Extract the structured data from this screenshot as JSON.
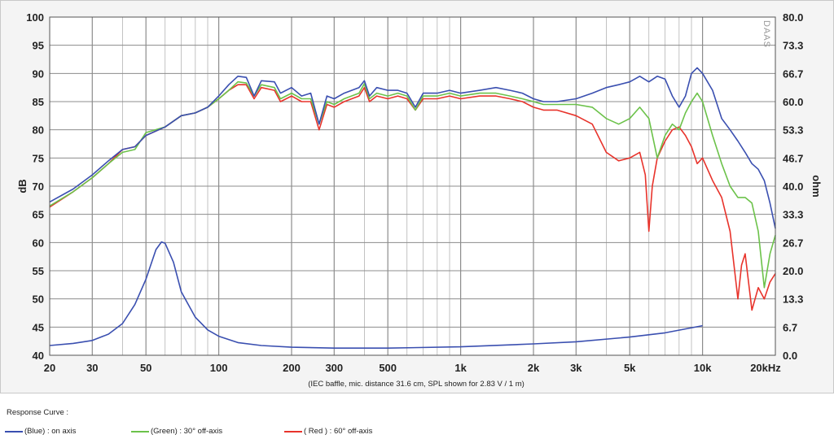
{
  "chart_data": {
    "type": "line",
    "title": "",
    "xlabel": "",
    "ylabel": "dB",
    "y2label": "ohm",
    "x_scale": "log",
    "xlim": [
      20,
      20000
    ],
    "ylim": [
      40,
      100
    ],
    "y2lim": [
      0,
      80
    ],
    "grid": true,
    "x_tick_labels": [
      {
        "v": 20,
        "t": "20"
      },
      {
        "v": 30,
        "t": "30"
      },
      {
        "v": 50,
        "t": "50"
      },
      {
        "v": 100,
        "t": "100"
      },
      {
        "v": 200,
        "t": "200"
      },
      {
        "v": 300,
        "t": "300"
      },
      {
        "v": 500,
        "t": "500"
      },
      {
        "v": 1000,
        "t": "1k"
      },
      {
        "v": 2000,
        "t": "2k"
      },
      {
        "v": 3000,
        "t": "3k"
      },
      {
        "v": 5000,
        "t": "5k"
      },
      {
        "v": 10000,
        "t": "10k"
      },
      {
        "v": 20000,
        "t": "20kHz"
      }
    ],
    "y_ticks": [
      100,
      95,
      90,
      85,
      80,
      75,
      70,
      65,
      60,
      55,
      50,
      45,
      40
    ],
    "y2_tick_labels": [
      "80.0",
      "73.3",
      "66.7",
      "60.0",
      "53.3",
      "46.7",
      "40.0",
      "33.3",
      "26.7",
      "20.0",
      "13.3",
      "6.7",
      "0.0"
    ],
    "annotation": "(IEC baffle, mic. distance 31.6 cm, SPL shown for 2.83 V / 1 m)",
    "watermark": "DAAS",
    "series": [
      {
        "name": "(Blue)  : on axis",
        "color": "#3a4fb0",
        "axis": "y",
        "points": [
          [
            20,
            67.2
          ],
          [
            25,
            69.5
          ],
          [
            30,
            72
          ],
          [
            35,
            74.5
          ],
          [
            40,
            76.5
          ],
          [
            45,
            77
          ],
          [
            50,
            79
          ],
          [
            60,
            80.5
          ],
          [
            70,
            82.5
          ],
          [
            80,
            83
          ],
          [
            90,
            84
          ],
          [
            100,
            86
          ],
          [
            110,
            88
          ],
          [
            120,
            89.5
          ],
          [
            130,
            89.3
          ],
          [
            140,
            86
          ],
          [
            150,
            88.7
          ],
          [
            170,
            88.5
          ],
          [
            180,
            86.5
          ],
          [
            200,
            87.5
          ],
          [
            220,
            86
          ],
          [
            240,
            86.5
          ],
          [
            260,
            81
          ],
          [
            280,
            86
          ],
          [
            300,
            85.5
          ],
          [
            330,
            86.5
          ],
          [
            380,
            87.5
          ],
          [
            400,
            88.7
          ],
          [
            420,
            86
          ],
          [
            450,
            87.5
          ],
          [
            500,
            87
          ],
          [
            550,
            87
          ],
          [
            600,
            86.5
          ],
          [
            650,
            84
          ],
          [
            700,
            86.5
          ],
          [
            800,
            86.5
          ],
          [
            900,
            87
          ],
          [
            1000,
            86.5
          ],
          [
            1200,
            87
          ],
          [
            1400,
            87.5
          ],
          [
            1600,
            87
          ],
          [
            1800,
            86.5
          ],
          [
            2000,
            85.5
          ],
          [
            2200,
            85
          ],
          [
            2500,
            85
          ],
          [
            3000,
            85.5
          ],
          [
            3500,
            86.5
          ],
          [
            4000,
            87.5
          ],
          [
            4500,
            88
          ],
          [
            5000,
            88.5
          ],
          [
            5500,
            89.5
          ],
          [
            6000,
            88.5
          ],
          [
            6500,
            89.5
          ],
          [
            7000,
            89
          ],
          [
            7500,
            86
          ],
          [
            8000,
            84
          ],
          [
            8500,
            86
          ],
          [
            9000,
            90
          ],
          [
            9500,
            91
          ],
          [
            10000,
            90
          ],
          [
            11000,
            87
          ],
          [
            12000,
            82
          ],
          [
            13000,
            80
          ],
          [
            14000,
            78
          ],
          [
            15000,
            76
          ],
          [
            16000,
            74
          ],
          [
            17000,
            73
          ],
          [
            18000,
            71
          ],
          [
            19000,
            67
          ],
          [
            20000,
            62.5
          ]
        ]
      },
      {
        "name": "(Green) : 30° off-axis",
        "color": "#6cc24a",
        "axis": "y",
        "points": [
          [
            20,
            66.5
          ],
          [
            25,
            69
          ],
          [
            30,
            71.5
          ],
          [
            35,
            74
          ],
          [
            40,
            76
          ],
          [
            45,
            76.5
          ],
          [
            50,
            79.5
          ],
          [
            60,
            80.5
          ],
          [
            70,
            82.5
          ],
          [
            80,
            83
          ],
          [
            90,
            84
          ],
          [
            100,
            85.5
          ],
          [
            110,
            87
          ],
          [
            120,
            88.5
          ],
          [
            130,
            88.3
          ],
          [
            140,
            86
          ],
          [
            150,
            88
          ],
          [
            170,
            87.5
          ],
          [
            180,
            85.5
          ],
          [
            200,
            86.5
          ],
          [
            220,
            85.5
          ],
          [
            240,
            85.5
          ],
          [
            260,
            81
          ],
          [
            280,
            85
          ],
          [
            300,
            84.5
          ],
          [
            330,
            85.5
          ],
          [
            380,
            86.5
          ],
          [
            400,
            88.2
          ],
          [
            420,
            85.5
          ],
          [
            450,
            86.5
          ],
          [
            500,
            86
          ],
          [
            550,
            86.5
          ],
          [
            600,
            86
          ],
          [
            650,
            83.5
          ],
          [
            700,
            86
          ],
          [
            800,
            86
          ],
          [
            900,
            86.5
          ],
          [
            1000,
            86
          ],
          [
            1200,
            86.5
          ],
          [
            1400,
            86.5
          ],
          [
            1600,
            86
          ],
          [
            1800,
            85.5
          ],
          [
            2000,
            85
          ],
          [
            2200,
            84.5
          ],
          [
            2500,
            84.5
          ],
          [
            3000,
            84.5
          ],
          [
            3500,
            84
          ],
          [
            4000,
            82
          ],
          [
            4500,
            81
          ],
          [
            5000,
            82
          ],
          [
            5500,
            84
          ],
          [
            6000,
            82
          ],
          [
            6500,
            75
          ],
          [
            7000,
            79
          ],
          [
            7500,
            81
          ],
          [
            8000,
            80
          ],
          [
            8500,
            83
          ],
          [
            9000,
            85
          ],
          [
            9500,
            86.5
          ],
          [
            10000,
            85
          ],
          [
            11000,
            79
          ],
          [
            12000,
            74
          ],
          [
            13000,
            70
          ],
          [
            14000,
            68
          ],
          [
            15000,
            68
          ],
          [
            16000,
            67
          ],
          [
            17000,
            62
          ],
          [
            18000,
            52
          ],
          [
            19000,
            58
          ],
          [
            20000,
            61.3
          ]
        ]
      },
      {
        "name": "( Red ) : 60° off-axis",
        "color": "#e8332b",
        "axis": "y",
        "points": [
          [
            20,
            66.3
          ],
          [
            25,
            69
          ],
          [
            30,
            71.5
          ],
          [
            35,
            74
          ],
          [
            40,
            76.5
          ],
          [
            45,
            77
          ],
          [
            50,
            79
          ],
          [
            60,
            80.5
          ],
          [
            70,
            82.5
          ],
          [
            80,
            83
          ],
          [
            90,
            84
          ],
          [
            100,
            85.5
          ],
          [
            110,
            87
          ],
          [
            120,
            88
          ],
          [
            130,
            88
          ],
          [
            140,
            85.5
          ],
          [
            150,
            87.5
          ],
          [
            170,
            87
          ],
          [
            180,
            85
          ],
          [
            200,
            86
          ],
          [
            220,
            85
          ],
          [
            240,
            85
          ],
          [
            260,
            80
          ],
          [
            280,
            84.5
          ],
          [
            300,
            84
          ],
          [
            330,
            85
          ],
          [
            380,
            86
          ],
          [
            400,
            87.5
          ],
          [
            420,
            85
          ],
          [
            450,
            86
          ],
          [
            500,
            85.5
          ],
          [
            550,
            86
          ],
          [
            600,
            85.5
          ],
          [
            650,
            83.5
          ],
          [
            700,
            85.5
          ],
          [
            800,
            85.5
          ],
          [
            900,
            86
          ],
          [
            1000,
            85.5
          ],
          [
            1200,
            86
          ],
          [
            1400,
            86
          ],
          [
            1600,
            85.5
          ],
          [
            1800,
            85
          ],
          [
            2000,
            84
          ],
          [
            2200,
            83.5
          ],
          [
            2500,
            83.5
          ],
          [
            3000,
            82.5
          ],
          [
            3500,
            81
          ],
          [
            4000,
            76
          ],
          [
            4500,
            74.5
          ],
          [
            5000,
            75
          ],
          [
            5500,
            76
          ],
          [
            5800,
            72
          ],
          [
            6000,
            62
          ],
          [
            6200,
            70
          ],
          [
            6500,
            75
          ],
          [
            7000,
            78
          ],
          [
            7500,
            80
          ],
          [
            8000,
            80.5
          ],
          [
            8500,
            79
          ],
          [
            9000,
            77
          ],
          [
            9500,
            74
          ],
          [
            10000,
            75
          ],
          [
            11000,
            71
          ],
          [
            12000,
            68
          ],
          [
            13000,
            62
          ],
          [
            14000,
            50
          ],
          [
            14500,
            56
          ],
          [
            15000,
            58
          ],
          [
            16000,
            48
          ],
          [
            17000,
            52
          ],
          [
            18000,
            50
          ],
          [
            19000,
            53
          ],
          [
            20000,
            54.5
          ]
        ]
      },
      {
        "name": "impedance",
        "color": "#3a4fb0",
        "axis": "y2",
        "points": [
          [
            20,
            2.3
          ],
          [
            25,
            2.8
          ],
          [
            30,
            3.5
          ],
          [
            35,
            5
          ],
          [
            40,
            7.5
          ],
          [
            45,
            12
          ],
          [
            50,
            18
          ],
          [
            55,
            25
          ],
          [
            58,
            26.8
          ],
          [
            60,
            26.5
          ],
          [
            65,
            22
          ],
          [
            70,
            15
          ],
          [
            80,
            9
          ],
          [
            90,
            6
          ],
          [
            100,
            4.5
          ],
          [
            120,
            3
          ],
          [
            150,
            2.3
          ],
          [
            200,
            1.9
          ],
          [
            300,
            1.7
          ],
          [
            500,
            1.7
          ],
          [
            1000,
            2
          ],
          [
            2000,
            2.7
          ],
          [
            3000,
            3.2
          ],
          [
            5000,
            4.3
          ],
          [
            7000,
            5.3
          ],
          [
            10000,
            7
          ]
        ]
      }
    ]
  },
  "legend": {
    "title": "Response Curve :",
    "items": [
      {
        "label": "(Blue)  : on axis",
        "color": "#3a4fb0"
      },
      {
        "label": "(Green) : 30° off-axis",
        "color": "#6cc24a"
      },
      {
        "label": "( Red ) : 60° off-axis",
        "color": "#e8332b"
      }
    ]
  }
}
